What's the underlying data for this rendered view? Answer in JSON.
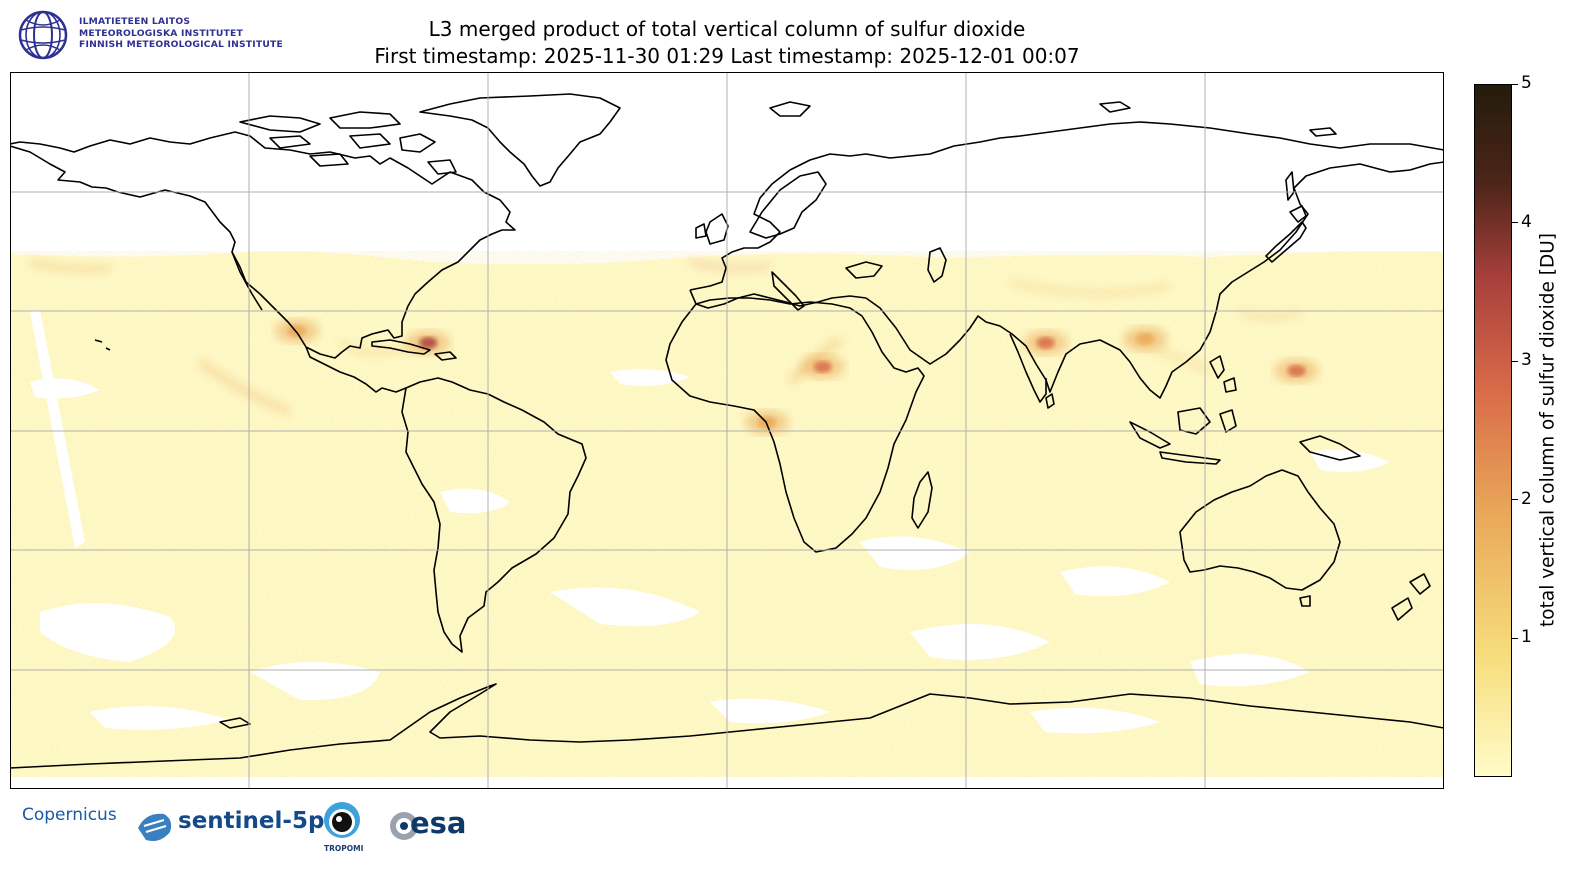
{
  "institute": {
    "line1": "ILMATIETEEN LAITOS",
    "line2": "METEOROLOGISKA INSTITUTET",
    "line3": "FINNISH METEOROLOGICAL INSTITUTE",
    "color": "#2e3192"
  },
  "title": {
    "line1": "L3 merged product of total vertical column of sulfur dioxide",
    "line2": "First timestamp: 2025-11-30 01:29   Last timestamp: 2025-12-01 00:07"
  },
  "colorbar": {
    "label": "total vertical column of sulfur dioxide [DU]",
    "ticks": [
      "1",
      "2",
      "3",
      "4",
      "5"
    ],
    "min": 0,
    "max": 5,
    "colors": [
      "#fffcc9",
      "#f6dc7a",
      "#e9a859",
      "#d96a49",
      "#a8403c",
      "#4c2418",
      "#231c0c"
    ]
  },
  "map": {
    "projection": "Plate Carree",
    "lon_range": [
      -180,
      180
    ],
    "lat_range": [
      -90,
      90
    ],
    "grid": true,
    "background_color": "#fffcc9",
    "hotspots": [
      {
        "name": "Caribbean",
        "lon": -75,
        "lat": 22,
        "value": 3.2
      },
      {
        "name": "Sudan",
        "lon": 24,
        "lat": 16,
        "value": 2.4
      },
      {
        "name": "Central Africa",
        "lon": 10,
        "lat": 2,
        "value": 2.1
      },
      {
        "name": "India",
        "lon": 80,
        "lat": 22,
        "value": 2.3
      },
      {
        "name": "East China",
        "lon": 105,
        "lat": 23,
        "value": 2.2
      },
      {
        "name": "Western Pacific",
        "lon": 143,
        "lat": 15,
        "value": 2.8
      },
      {
        "name": "Mexico",
        "lon": -108,
        "lat": 25,
        "value": 2.0
      }
    ]
  },
  "logos": {
    "copernicus": "Copernicus",
    "sentinel": "sentinel-5p",
    "tropomi": "TROPOMI",
    "esa": "esa"
  }
}
